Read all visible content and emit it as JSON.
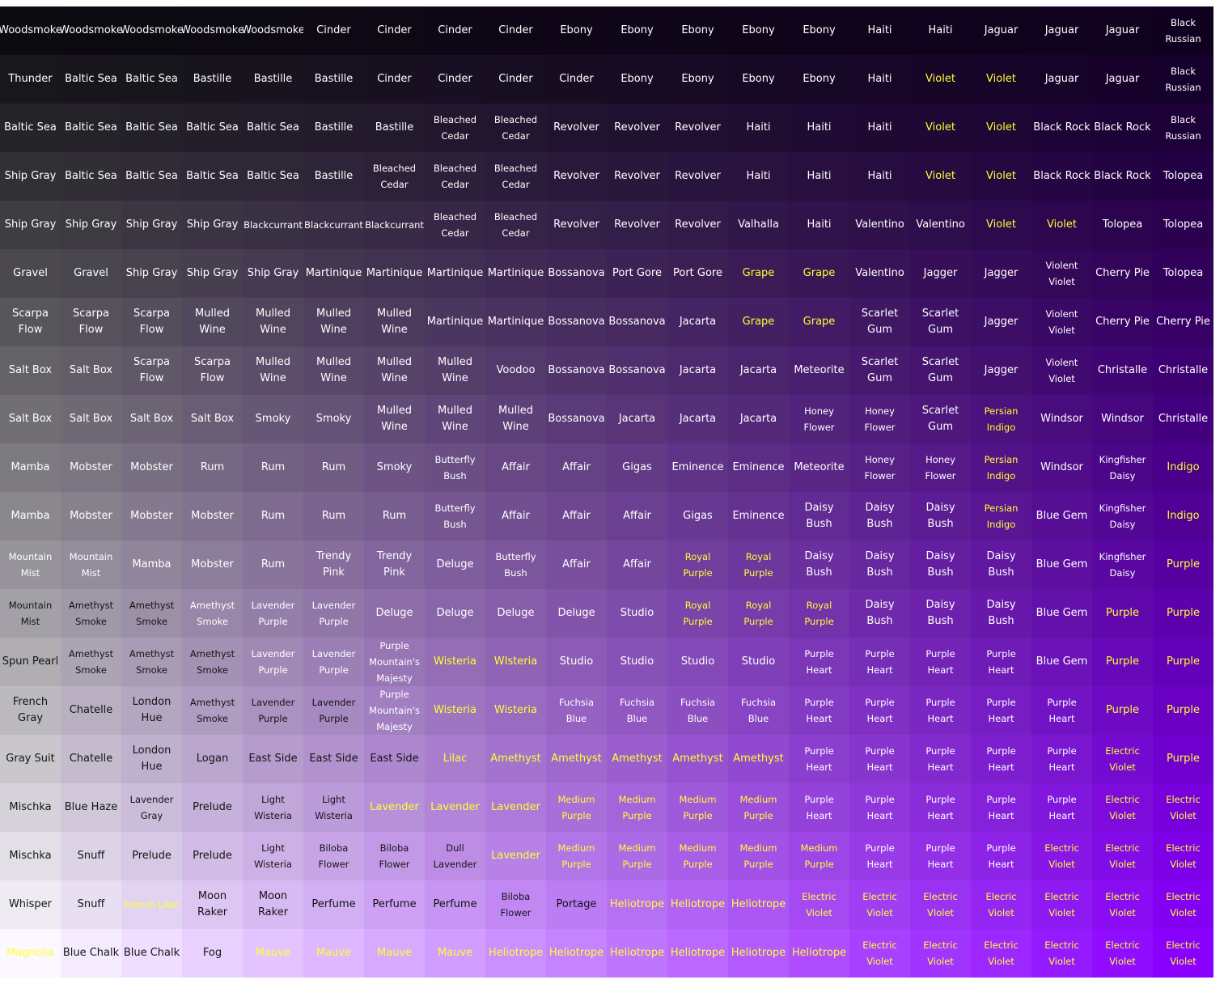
{
  "grid": {
    "rows": [
      [
        "Woodsmoke",
        "Woodsmoke",
        "Woodsmoke",
        "Woodsmoke",
        "Woodsmoke",
        "Cinder",
        "Cinder",
        "Cinder",
        "Cinder",
        "Ebony",
        "Ebony",
        "Ebony",
        "Ebony",
        "Ebony",
        "Haiti",
        "Haiti",
        "Jaguar",
        "Jaguar",
        "Jaguar",
        "Black Russian"
      ],
      [
        "Thunder",
        "Baltic Sea",
        "Baltic Sea",
        "Bastille",
        "Bastille",
        "Bastille",
        "Cinder",
        "Cinder",
        "Cinder",
        "Cinder",
        "Ebony",
        "Ebony",
        "Ebony",
        "Ebony",
        "Haiti",
        "Violet",
        "Violet",
        "Jaguar",
        "Jaguar",
        "Black Russian"
      ],
      [
        "Baltic Sea",
        "Baltic Sea",
        "Baltic Sea",
        "Baltic Sea",
        "Baltic Sea",
        "Bastille",
        "Bastille",
        "Bleached Cedar",
        "Bleached Cedar",
        "Revolver",
        "Revolver",
        "Revolver",
        "Haiti",
        "Haiti",
        "Haiti",
        "Violet",
        "Violet",
        "Black Rock",
        "Black Rock",
        "Black Russian"
      ],
      [
        "Ship Gray",
        "Baltic Sea",
        "Baltic Sea",
        "Baltic Sea",
        "Baltic Sea",
        "Bastille",
        "Bleached Cedar",
        "Bleached Cedar",
        "Bleached Cedar",
        "Revolver",
        "Revolver",
        "Revolver",
        "Haiti",
        "Haiti",
        "Haiti",
        "Violet",
        "Violet",
        "Black Rock",
        "Black Rock",
        "Tolopea"
      ],
      [
        "Ship Gray",
        "Ship Gray",
        "Ship Gray",
        "Ship Gray",
        "Blackcurrant",
        "Blackcurrant",
        "Blackcurrant",
        "Bleached Cedar",
        "Bleached Cedar",
        "Revolver",
        "Revolver",
        "Revolver",
        "Valhalla",
        "Haiti",
        "Valentino",
        "Valentino",
        "Violet",
        "Violet",
        "Tolopea",
        "Tolopea"
      ],
      [
        "Gravel",
        "Gravel",
        "Ship Gray",
        "Ship Gray",
        "Ship Gray",
        "Martinique",
        "Martinique",
        "Martinique",
        "Martinique",
        "Bossanova",
        "Port Gore",
        "Port Gore",
        "Grape",
        "Grape",
        "Valentino",
        "Jagger",
        "Jagger",
        "Violent Violet",
        "Cherry Pie",
        "Tolopea"
      ],
      [
        "Scarpa Flow",
        "Scarpa Flow",
        "Scarpa Flow",
        "Mulled Wine",
        "Mulled Wine",
        "Mulled Wine",
        "Mulled Wine",
        "Martinique",
        "Martinique",
        "Bossanova",
        "Bossanova",
        "Jacarta",
        "Grape",
        "Grape",
        "Scarlet Gum",
        "Scarlet Gum",
        "Jagger",
        "Violent Violet",
        "Cherry Pie",
        "Cherry Pie"
      ],
      [
        "Salt Box",
        "Salt Box",
        "Scarpa Flow",
        "Scarpa Flow",
        "Mulled Wine",
        "Mulled Wine",
        "Mulled Wine",
        "Mulled Wine",
        "Voodoo",
        "Bossanova",
        "Bossanova",
        "Jacarta",
        "Jacarta",
        "Meteorite",
        "Scarlet Gum",
        "Scarlet Gum",
        "Jagger",
        "Violent Violet",
        "Christalle",
        "Christalle"
      ],
      [
        "Salt Box",
        "Salt Box",
        "Salt Box",
        "Salt Box",
        "Smoky",
        "Smoky",
        "Mulled Wine",
        "Mulled Wine",
        "Mulled Wine",
        "Bossanova",
        "Jacarta",
        "Jacarta",
        "Jacarta",
        "Honey Flower",
        "Honey Flower",
        "Scarlet Gum",
        "Persian Indigo",
        "Windsor",
        "Windsor",
        "Christalle"
      ],
      [
        "Mamba",
        "Mobster",
        "Mobster",
        "Rum",
        "Rum",
        "Rum",
        "Smoky",
        "Butterfly Bush",
        "Affair",
        "Affair",
        "Gigas",
        "Eminence",
        "Eminence",
        "Meteorite",
        "Honey Flower",
        "Honey Flower",
        "Persian Indigo",
        "Windsor",
        "Kingfisher Daisy",
        "Indigo"
      ],
      [
        "Mamba",
        "Mobster",
        "Mobster",
        "Mobster",
        "Rum",
        "Rum",
        "Rum",
        "Butterfly Bush",
        "Affair",
        "Affair",
        "Affair",
        "Gigas",
        "Eminence",
        "Daisy Bush",
        "Daisy Bush",
        "Daisy Bush",
        "Persian Indigo",
        "Blue Gem",
        "Kingfisher Daisy",
        "Indigo"
      ],
      [
        "Mountain Mist",
        "Mountain Mist",
        "Mamba",
        "Mobster",
        "Rum",
        "Trendy Pink",
        "Trendy Pink",
        "Deluge",
        "Butterfly Bush",
        "Affair",
        "Affair",
        "Royal Purple",
        "Royal Purple",
        "Daisy Bush",
        "Daisy Bush",
        "Daisy Bush",
        "Daisy Bush",
        "Blue Gem",
        "Kingfisher Daisy",
        "Purple"
      ],
      [
        "Mountain Mist",
        "Amethyst Smoke",
        "Amethyst Smoke",
        "Amethyst Smoke",
        "Lavender Purple",
        "Lavender Purple",
        "Deluge",
        "Deluge",
        "Deluge",
        "Deluge",
        "Studio",
        "Royal Purple",
        "Royal Purple",
        "Royal Purple",
        "Daisy Bush",
        "Daisy Bush",
        "Daisy Bush",
        "Blue Gem",
        "Purple",
        "Purple"
      ],
      [
        "Spun Pearl",
        "Amethyst Smoke",
        "Amethyst Smoke",
        "Amethyst Smoke",
        "Lavender Purple",
        "Lavender Purple",
        "Purple Mountain's Majesty",
        "Wisteria",
        "WIsteria",
        "Studio",
        "Studio",
        "Studio",
        "Studio",
        "Purple Heart",
        "Purple Heart",
        "Purple Heart",
        "Purple Heart",
        "Blue Gem",
        "Purple",
        "Purple"
      ],
      [
        "French Gray",
        "Chatelle",
        "London Hue",
        "Amethyst Smoke",
        "Lavender Purple",
        "Lavender Purple",
        "Purple Mountain's Majesty",
        "Wisteria",
        "Wisteria",
        "Fuchsia Blue",
        "Fuchsia Blue",
        "Fuchsia Blue",
        "Fuchsia Blue",
        "Purple Heart",
        "Purple Heart",
        "Purple Heart",
        "Purple Heart",
        "Purple Heart",
        "Purple",
        "Purple"
      ],
      [
        "Gray Suit",
        "Chatelle",
        "London Hue",
        "Logan",
        "East Side",
        "East Side",
        "East Side",
        "Lilac",
        "Amethyst",
        "Amethyst",
        "Amethyst",
        "Amethyst",
        "Amethyst",
        "Purple Heart",
        "Purple Heart",
        "Purple Heart",
        "Purple Heart",
        "Purple Heart",
        "Electric Violet",
        "Purple"
      ],
      [
        "Mischka",
        "Blue Haze",
        "Lavender Gray",
        "Prelude",
        "Light Wisteria",
        "Light Wisteria",
        "Lavender",
        "Lavender",
        "Lavender",
        "Medium Purple",
        "Medium Purple",
        "Medium Purple",
        "Medium Purple",
        "Purple Heart",
        "Purple Heart",
        "Purple Heart",
        "Purple Heart",
        "Purple Heart",
        "Electric Violet",
        "Electric Violet"
      ],
      [
        "Mischka",
        "Snuff",
        "Prelude",
        "Prelude",
        "Light Wisteria",
        "Biloba Flower",
        "Biloba Flower",
        "Dull Lavender",
        "Lavender",
        "Medium Purple",
        "Medium Purple",
        "Medium Purple",
        "Medium Purple",
        "Medium Purple",
        "Purple Heart",
        "Purple Heart",
        "Purple Heart",
        "Electric Violet",
        "Electric Violet",
        "Electric Violet"
      ],
      [
        "Whisper",
        "Snuff",
        "French Lilac",
        "Moon Raker",
        "Moon Raker",
        "Perfume",
        "Perfume",
        "Perfume",
        "Biloba Flower",
        "Portage",
        "Heliotrope",
        "Heliotrope",
        "Heliotrope",
        "Electric Violet",
        "Electric Violet",
        "Electric VIolet",
        "Elecric Violet",
        "Electric Violet",
        "Electric Violet",
        "Electric Violet"
      ],
      [
        "Magnolia",
        "Blue Chalk",
        "Blue Chalk",
        "Fog",
        "Mauve",
        "Mauve",
        "Mauve",
        "Mauve",
        "Heliotrope",
        "Heliotrope",
        "Heliotrope",
        "Heliotrope",
        "Heliotrope",
        "Heliotrope",
        "Electric Violet",
        "Electric Violet",
        "Electric Violet",
        "Electric Violet",
        "Electric Violet",
        "Electric Violet"
      ]
    ],
    "yellow_labels": [
      "Violet",
      "Grape",
      "Persian Indigo",
      "Indigo",
      "Royal Purple",
      "Purple",
      "Wisteria",
      "WIsteria",
      "Lilac",
      "Amethyst",
      "Lavender",
      "Medium Purple",
      "Electric Violet",
      "Electric VIolet",
      "Elecric Violet",
      "Heliotrope",
      "French Lilac",
      "Magnolia",
      "Mauve"
    ],
    "corner_colors": {
      "top_left": "#0c0b0f",
      "top_right": "#100020",
      "bottom_left": "#fbf8ff",
      "bottom_right": "#8a00ff"
    },
    "text_colors": {
      "light": "#ffffff",
      "dark": "#141414",
      "yellow": "#ffff33"
    }
  }
}
